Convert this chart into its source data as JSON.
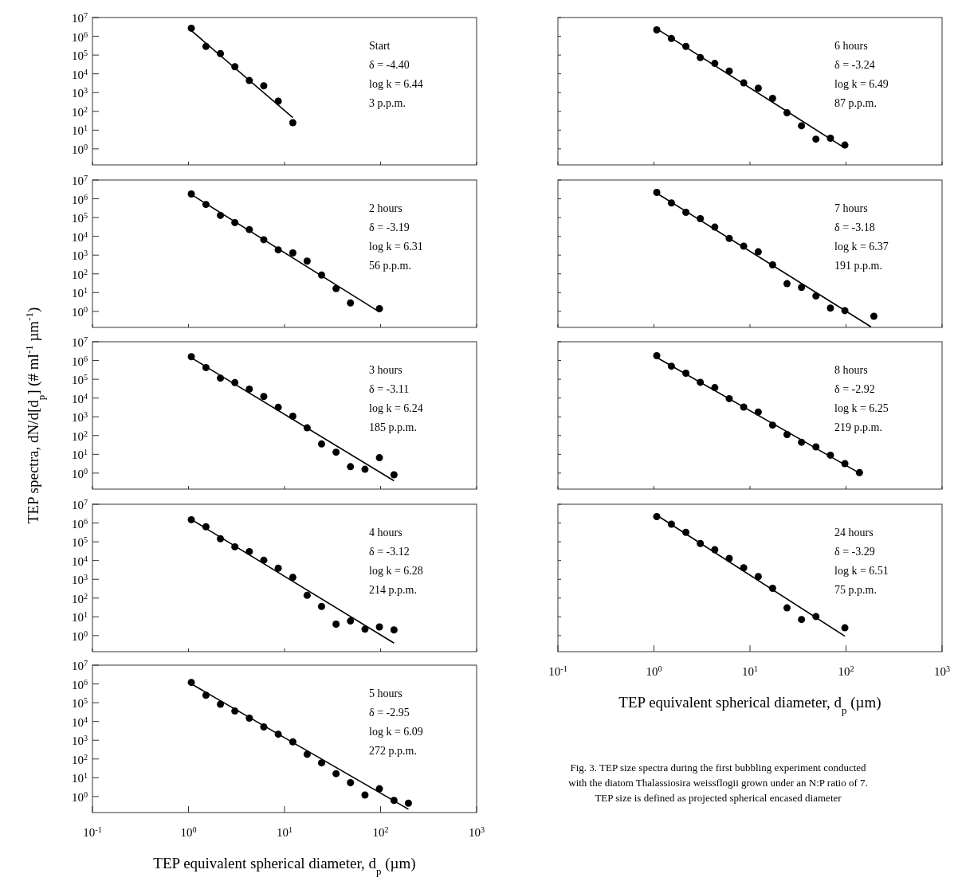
{
  "chart_data": [
    {
      "type": "scatter",
      "log": "xy",
      "xlim": [
        0.1,
        1000
      ],
      "ylim": [
        0.14,
        10000000
      ],
      "xticks": [
        {
          "value": 0.1,
          "label": null
        },
        {
          "value": 1,
          "label": null
        },
        {
          "value": 10,
          "label": null
        },
        {
          "value": 100,
          "label": null
        },
        {
          "value": 1000,
          "label": null
        }
      ],
      "yticks": [
        {
          "value": 1,
          "label": "10$^{0}$"
        },
        {
          "value": 10,
          "label": "10$^{1}$"
        },
        {
          "value": 100,
          "label": "10$^{2}$"
        },
        {
          "value": 1000,
          "label": "10$^{3}$"
        },
        {
          "value": 10000,
          "label": "10$^{4}$"
        },
        {
          "value": 100000,
          "label": "10$^{5}$"
        },
        {
          "value": 1000000,
          "label": "10$^{6}$"
        },
        {
          "value": 10000000,
          "label": "10$^{7}$"
        }
      ],
      "tick_labels": "y",
      "annotations": [
        "Start",
        "δ = -4.40",
        "log k = 6.44",
        "3 p.p.m."
      ],
      "series": [
        {
          "type": "scatter",
          "marker": "circle",
          "color": "#000000",
          "x": [
            1.07,
            1.52,
            2.15,
            3.04,
            4.3,
            6.08,
            8.6,
            12.2
          ],
          "values": [
            2700000,
            290000,
            120000,
            24000,
            4400,
            2300,
            350,
            25
          ]
        },
        {
          "type": "line",
          "marker": "none",
          "color": "#000000",
          "x": [
            1.07,
            12.2
          ],
          "values": [
            2000000,
            46
          ]
        }
      ]
    },
    {
      "type": "scatter",
      "log": "xy",
      "xlim": [
        0.1,
        1000
      ],
      "ylim": [
        0.14,
        10000000
      ],
      "xticks": [
        {
          "value": 0.1,
          "label": null
        },
        {
          "value": 1,
          "label": null
        },
        {
          "value": 10,
          "label": null
        },
        {
          "value": 100,
          "label": null
        },
        {
          "value": 1000,
          "label": null
        }
      ],
      "yticks": [
        {
          "value": 1,
          "label": "10$^{0}$"
        },
        {
          "value": 10,
          "label": "10$^{1}$"
        },
        {
          "value": 100,
          "label": "10$^{2}$"
        },
        {
          "value": 1000,
          "label": "10$^{3}$"
        },
        {
          "value": 10000,
          "label": "10$^{4}$"
        },
        {
          "value": 100000,
          "label": "10$^{5}$"
        },
        {
          "value": 1000000,
          "label": "10$^{6}$"
        },
        {
          "value": 10000000,
          "label": "10$^{7}$"
        }
      ],
      "tick_labels": "y",
      "annotations": [
        "2 hours",
        "δ = -3.19",
        "log k = 6.31",
        "56 p.p.m."
      ],
      "series": [
        {
          "type": "scatter",
          "marker": "circle",
          "color": "#000000",
          "x": [
            1.07,
            1.52,
            2.15,
            3.04,
            4.3,
            6.08,
            8.6,
            12.2,
            17.2,
            24.3,
            34.4,
            48.6,
            97.3
          ],
          "values": [
            1800000,
            500000,
            130000,
            54000,
            23000,
            6600,
            1900,
            1300,
            480,
            87,
            16.5,
            2.8,
            1.4
          ]
        },
        {
          "type": "line",
          "marker": "none",
          "color": "#000000",
          "x": [
            1.07,
            97.3
          ],
          "values": [
            1700000,
            0.93
          ]
        }
      ]
    },
    {
      "type": "scatter",
      "log": "xy",
      "ylabel": "TEP spectra, dN/d[d$_{p}$] (# ml$^{-1}$ µm$^{-1}$)",
      "xlim": [
        0.1,
        1000
      ],
      "ylim": [
        0.14,
        10000000
      ],
      "xticks": [
        {
          "value": 0.1,
          "label": null
        },
        {
          "value": 1,
          "label": null
        },
        {
          "value": 10,
          "label": null
        },
        {
          "value": 100,
          "label": null
        },
        {
          "value": 1000,
          "label": null
        }
      ],
      "yticks": [
        {
          "value": 1,
          "label": "10$^{0}$"
        },
        {
          "value": 10,
          "label": "10$^{1}$"
        },
        {
          "value": 100,
          "label": "10$^{2}$"
        },
        {
          "value": 1000,
          "label": "10$^{3}$"
        },
        {
          "value": 10000,
          "label": "10$^{4}$"
        },
        {
          "value": 100000,
          "label": "10$^{5}$"
        },
        {
          "value": 1000000,
          "label": "10$^{6}$"
        },
        {
          "value": 10000000,
          "label": "10$^{7}$"
        }
      ],
      "tick_labels": "y",
      "annotations": [
        "3 hours",
        "δ = -3.11",
        "log k = 6.24",
        "185 p.p.m."
      ],
      "series": [
        {
          "type": "scatter",
          "marker": "circle",
          "color": "#000000",
          "x": [
            1.07,
            1.52,
            2.15,
            3.04,
            4.3,
            6.08,
            8.6,
            12.2,
            17.2,
            24.3,
            34.4,
            48.6,
            68.8,
            97.3,
            138
          ],
          "values": [
            1600000,
            420000,
            115000,
            66000,
            30000,
            12000,
            3200,
            1070,
            257,
            36,
            13,
            2.2,
            1.6,
            6.6,
            0.81
          ]
        },
        {
          "type": "line",
          "marker": "none",
          "color": "#000000",
          "x": [
            1.07,
            138
          ],
          "values": [
            1400000,
            0.39
          ]
        }
      ]
    },
    {
      "type": "scatter",
      "log": "xy",
      "xlim": [
        0.1,
        1000
      ],
      "ylim": [
        0.14,
        10000000
      ],
      "xticks": [
        {
          "value": 0.1,
          "label": null
        },
        {
          "value": 1,
          "label": null
        },
        {
          "value": 10,
          "label": null
        },
        {
          "value": 100,
          "label": null
        },
        {
          "value": 1000,
          "label": null
        }
      ],
      "yticks": [
        {
          "value": 1,
          "label": "10$^{0}$"
        },
        {
          "value": 10,
          "label": "10$^{1}$"
        },
        {
          "value": 100,
          "label": "10$^{2}$"
        },
        {
          "value": 1000,
          "label": "10$^{3}$"
        },
        {
          "value": 10000,
          "label": "10$^{4}$"
        },
        {
          "value": 100000,
          "label": "10$^{5}$"
        },
        {
          "value": 1000000,
          "label": "10$^{6}$"
        },
        {
          "value": 10000000,
          "label": "10$^{7}$"
        }
      ],
      "tick_labels": "y",
      "annotations": [
        "4 hours",
        "δ = -3.12",
        "log k = 6.28",
        "214 p.p.m."
      ],
      "series": [
        {
          "type": "scatter",
          "marker": "circle",
          "color": "#000000",
          "x": [
            1.07,
            1.52,
            2.15,
            3.04,
            4.3,
            6.08,
            8.6,
            12.2,
            17.2,
            24.3,
            34.4,
            48.6,
            68.8,
            97.3,
            138
          ],
          "values": [
            1500000,
            630000,
            145000,
            54000,
            30000,
            10500,
            3900,
            1270,
            140,
            36,
            4.1,
            6,
            2.2,
            2.9,
            2
          ]
        },
        {
          "type": "line",
          "marker": "none",
          "color": "#000000",
          "x": [
            1.07,
            138
          ],
          "values": [
            1550000,
            0.4
          ]
        }
      ]
    },
    {
      "type": "scatter",
      "log": "xy",
      "xlabel": "TEP equivalent spherical diameter, d$_{p}$ (µm)",
      "xlim": [
        0.1,
        1000
      ],
      "ylim": [
        0.14,
        10000000
      ],
      "xticks": [
        {
          "value": 0.1,
          "label": "10$^{-1}$"
        },
        {
          "value": 1,
          "label": "10$^{0}$"
        },
        {
          "value": 10,
          "label": "10$^{1}$"
        },
        {
          "value": 100,
          "label": "10$^{2}$"
        },
        {
          "value": 1000,
          "label": "10$^{3}$"
        }
      ],
      "yticks": [
        {
          "value": 1,
          "label": "10$^{0}$"
        },
        {
          "value": 10,
          "label": "10$^{1}$"
        },
        {
          "value": 100,
          "label": "10$^{2}$"
        },
        {
          "value": 1000,
          "label": "10$^{3}$"
        },
        {
          "value": 10000,
          "label": "10$^{4}$"
        },
        {
          "value": 100000,
          "label": "10$^{5}$"
        },
        {
          "value": 1000000,
          "label": "10$^{6}$"
        },
        {
          "value": 10000000,
          "label": "10$^{7}$"
        }
      ],
      "annotations": [
        "5 hours",
        "δ = -2.95",
        "log k = 6.09",
        "272 p.p.m."
      ],
      "series": [
        {
          "type": "scatter",
          "marker": "circle",
          "color": "#000000",
          "x": [
            1.07,
            1.52,
            2.15,
            3.04,
            4.3,
            6.08,
            8.6,
            12.2,
            17.2,
            24.3,
            34.4,
            48.6,
            68.8,
            97.3,
            138,
            195
          ],
          "values": [
            1200000,
            250000,
            83000,
            36000,
            15000,
            5100,
            2100,
            820,
            177,
            62,
            16.6,
            5.5,
            1.2,
            2.6,
            0.62,
            0.44
          ]
        },
        {
          "type": "line",
          "marker": "none",
          "color": "#000000",
          "x": [
            1.07,
            195
          ],
          "values": [
            1000000,
            0.21
          ]
        }
      ]
    },
    {
      "type": "scatter",
      "log": "xy",
      "xlim": [
        0.1,
        1000
      ],
      "ylim": [
        0.14,
        10000000
      ],
      "xticks": [
        {
          "value": 0.1,
          "label": null
        },
        {
          "value": 1,
          "label": null
        },
        {
          "value": 10,
          "label": null
        },
        {
          "value": 100,
          "label": null
        },
        {
          "value": 1000,
          "label": null
        }
      ],
      "yticks": [
        {
          "value": 1,
          "label": null
        },
        {
          "value": 10,
          "label": null
        },
        {
          "value": 100,
          "label": null
        },
        {
          "value": 1000,
          "label": null
        },
        {
          "value": 10000,
          "label": null
        },
        {
          "value": 100000,
          "label": null
        },
        {
          "value": 1000000,
          "label": null
        },
        {
          "value": 10000000,
          "label": null
        }
      ],
      "tick_labels": false,
      "annotations": [
        "6 hours",
        "δ = -3.24",
        "log k = 6.49",
        "87 p.p.m."
      ],
      "series": [
        {
          "type": "scatter",
          "marker": "circle",
          "color": "#000000",
          "x": [
            1.07,
            1.52,
            2.15,
            3.04,
            4.3,
            6.08,
            8.6,
            12.2,
            17.2,
            24.3,
            34.4,
            48.6,
            68.8,
            97.3
          ],
          "values": [
            2200000,
            760000,
            290000,
            73000,
            36000,
            14000,
            3300,
            1700,
            490,
            84,
            17,
            3.3,
            3.7,
            1.6
          ]
        },
        {
          "type": "line",
          "marker": "none",
          "color": "#000000",
          "x": [
            1.07,
            97.3
          ],
          "values": [
            2500000,
            1.1
          ]
        }
      ]
    },
    {
      "type": "scatter",
      "log": "xy",
      "xlim": [
        0.1,
        1000
      ],
      "ylim": [
        0.14,
        10000000
      ],
      "xticks": [
        {
          "value": 0.1,
          "label": null
        },
        {
          "value": 1,
          "label": null
        },
        {
          "value": 10,
          "label": null
        },
        {
          "value": 100,
          "label": null
        },
        {
          "value": 1000,
          "label": null
        }
      ],
      "yticks": [
        {
          "value": 1,
          "label": null
        },
        {
          "value": 10,
          "label": null
        },
        {
          "value": 100,
          "label": null
        },
        {
          "value": 1000,
          "label": null
        },
        {
          "value": 10000,
          "label": null
        },
        {
          "value": 100000,
          "label": null
        },
        {
          "value": 1000000,
          "label": null
        },
        {
          "value": 10000000,
          "label": null
        }
      ],
      "tick_labels": false,
      "annotations": [
        "7 hours",
        "δ = -3.18",
        "log k = 6.37",
        "191 p.p.m."
      ],
      "series": [
        {
          "type": "scatter",
          "marker": "circle",
          "color": "#000000",
          "x": [
            1.07,
            1.52,
            2.15,
            3.04,
            4.3,
            6.08,
            8.6,
            12.2,
            17.2,
            24.3,
            34.4,
            48.6,
            68.8,
            97.3,
            195
          ],
          "values": [
            2200000,
            600000,
            190000,
            87000,
            31000,
            7800,
            3000,
            1500,
            300,
            30,
            19,
            6.6,
            1.5,
            1.1,
            0.55
          ]
        },
        {
          "type": "line",
          "marker": "none",
          "color": "#000000",
          "x": [
            1.07,
            182
          ],
          "values": [
            2000000,
            0.15
          ]
        }
      ]
    },
    {
      "type": "scatter",
      "log": "xy",
      "xlim": [
        0.1,
        1000
      ],
      "ylim": [
        0.14,
        10000000
      ],
      "xticks": [
        {
          "value": 0.1,
          "label": null
        },
        {
          "value": 1,
          "label": null
        },
        {
          "value": 10,
          "label": null
        },
        {
          "value": 100,
          "label": null
        },
        {
          "value": 1000,
          "label": null
        }
      ],
      "yticks": [
        {
          "value": 1,
          "label": null
        },
        {
          "value": 10,
          "label": null
        },
        {
          "value": 100,
          "label": null
        },
        {
          "value": 1000,
          "label": null
        },
        {
          "value": 10000,
          "label": null
        },
        {
          "value": 100000,
          "label": null
        },
        {
          "value": 1000000,
          "label": null
        },
        {
          "value": 10000000,
          "label": null
        }
      ],
      "tick_labels": false,
      "annotations": [
        "8 hours",
        "δ = -2.92",
        "log k = 6.25",
        "219 p.p.m."
      ],
      "series": [
        {
          "type": "scatter",
          "marker": "circle",
          "color": "#000000",
          "x": [
            1.07,
            1.52,
            2.15,
            3.04,
            4.3,
            6.08,
            8.6,
            12.2,
            17.2,
            24.3,
            34.4,
            48.6,
            68.8,
            97.3,
            138
          ],
          "values": [
            1800000,
            500000,
            210000,
            69000,
            36000,
            9300,
            3300,
            1800,
            360,
            113,
            44,
            25,
            9,
            3.2,
            1.07
          ]
        },
        {
          "type": "line",
          "marker": "none",
          "color": "#000000",
          "x": [
            1.07,
            138
          ],
          "values": [
            1450000,
            1
          ]
        }
      ]
    },
    {
      "type": "scatter",
      "log": "xy",
      "xlabel": "TEP equivalent spherical diameter, d$_{p}$ (µm)",
      "xlim": [
        0.1,
        1000
      ],
      "ylim": [
        0.14,
        10000000
      ],
      "xticks": [
        {
          "value": 0.1,
          "label": "10$^{-1}$"
        },
        {
          "value": 1,
          "label": "10$^{0}$"
        },
        {
          "value": 10,
          "label": "10$^{1}$"
        },
        {
          "value": 100,
          "label": "10$^{2}$"
        },
        {
          "value": 1000,
          "label": "10$^{3}$"
        }
      ],
      "yticks": [
        {
          "value": 1,
          "label": null
        },
        {
          "value": 10,
          "label": null
        },
        {
          "value": 100,
          "label": null
        },
        {
          "value": 1000,
          "label": null
        },
        {
          "value": 10000,
          "label": null
        },
        {
          "value": 100000,
          "label": null
        },
        {
          "value": 1000000,
          "label": null
        },
        {
          "value": 10000000,
          "label": null
        }
      ],
      "tick_labels": "x",
      "annotations": [
        "24 hours",
        "δ = -3.29",
        "log k = 6.51",
        "75 p.p.m.",
        "Fig. 3. TEP size spectra during the first bubbling experiment conducted with the diatom Thalassiosira weissflogii grown under an N:P ratio of 7. TEP size is defined as projected spherical encased diameter"
      ],
      "series": [
        {
          "type": "scatter",
          "marker": "circle",
          "color": "#000000",
          "x": [
            1.07,
            1.52,
            2.15,
            3.04,
            4.3,
            6.08,
            8.6,
            12.2,
            17.2,
            24.3,
            34.4,
            48.6,
            97.3
          ],
          "values": [
            2200000,
            870000,
            320000,
            81000,
            38000,
            13000,
            4100,
            1400,
            333,
            30,
            7.2,
            10.4,
            2.6
          ]
        },
        {
          "type": "line",
          "marker": "none",
          "color": "#000000",
          "x": [
            1.07,
            97.3
          ],
          "values": [
            2600000,
            0.93
          ]
        }
      ]
    }
  ]
}
